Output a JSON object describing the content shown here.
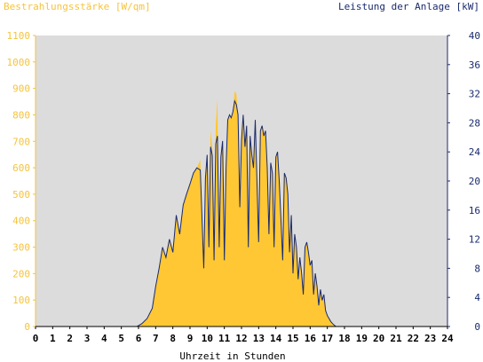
{
  "chart_data": {
    "type": "area",
    "left_axis_title": "Bestrahlungsstärke [W/qm]",
    "right_axis_title": "Leistung der Anlage [kW]",
    "xlabel": "Uhrzeit in Stunden",
    "x_ticks": [
      "0",
      "1",
      "2",
      "3",
      "4",
      "5",
      "6",
      "7",
      "8",
      "9",
      "10",
      "11",
      "12",
      "13",
      "14",
      "15",
      "16",
      "17",
      "18",
      "19",
      "20",
      "21",
      "22",
      "23",
      "24"
    ],
    "left_ticks": [
      "0",
      "100",
      "200",
      "300",
      "400",
      "500",
      "600",
      "700",
      "800",
      "900",
      "1000",
      "1100"
    ],
    "right_ticks": [
      "0",
      "4",
      "8",
      "12",
      "16",
      "20",
      "24",
      "28",
      "32",
      "36",
      "40"
    ],
    "xlim": [
      0,
      24
    ],
    "ylim_left": [
      0,
      1100
    ],
    "ylim_right": [
      0,
      40
    ],
    "colors": {
      "irradiance_fill": "#ffc733",
      "power_line": "#1a2a6c",
      "left_axis": "#f5c33b",
      "right_axis": "#1a2a6c",
      "plot_bg": "#dcdcdc"
    },
    "series": [
      {
        "axis": "left",
        "x": [
          0,
          5.9,
          6.2,
          6.5,
          6.8,
          7.0,
          7.2,
          7.4,
          7.6,
          7.8,
          8.0,
          8.2,
          8.4,
          8.6,
          8.8,
          9.0,
          9.2,
          9.4,
          9.6,
          9.8,
          9.9,
          10.0,
          10.1,
          10.2,
          10.3,
          10.4,
          10.5,
          10.6,
          10.7,
          10.8,
          10.9,
          11.0,
          11.1,
          11.2,
          11.3,
          11.4,
          11.5,
          11.6,
          11.7,
          11.8,
          11.9,
          12.0,
          12.1,
          12.2,
          12.3,
          12.4,
          12.5,
          12.6,
          12.7,
          12.8,
          12.9,
          13.0,
          13.1,
          13.2,
          13.3,
          13.4,
          13.5,
          13.6,
          13.7,
          13.8,
          13.9,
          14.0,
          14.1,
          14.2,
          14.3,
          14.4,
          14.5,
          14.6,
          14.7,
          14.8,
          14.9,
          15.0,
          15.1,
          15.2,
          15.3,
          15.4,
          15.5,
          15.6,
          15.7,
          15.8,
          15.9,
          16.0,
          16.1,
          16.2,
          16.3,
          16.4,
          16.5,
          16.6,
          16.7,
          16.8,
          16.9,
          17.0,
          17.1,
          17.2,
          17.3,
          17.4,
          17.5,
          17.6,
          17.7,
          17.8,
          17.9,
          18.0,
          18.2,
          18.4,
          18.6,
          18.8,
          19.0,
          19.2,
          24
        ],
        "y": [
          0,
          0,
          10,
          30,
          70,
          150,
          220,
          300,
          260,
          330,
          280,
          420,
          350,
          460,
          500,
          540,
          580,
          600,
          630,
          220,
          560,
          650,
          300,
          740,
          680,
          250,
          760,
          860,
          300,
          640,
          700,
          250,
          600,
          780,
          800,
          790,
          810,
          890,
          880,
          800,
          450,
          700,
          800,
          680,
          760,
          300,
          720,
          650,
          600,
          780,
          550,
          320,
          740,
          760,
          720,
          740,
          600,
          350,
          620,
          580,
          300,
          640,
          660,
          550,
          400,
          250,
          580,
          560,
          500,
          280,
          420,
          200,
          350,
          300,
          180,
          260,
          200,
          120,
          300,
          320,
          280,
          230,
          250,
          120,
          200,
          150,
          80,
          140,
          100,
          120,
          60,
          40,
          30,
          20,
          12,
          5,
          0,
          0,
          0,
          0,
          0,
          0,
          0,
          0,
          0,
          0,
          0,
          0,
          0
        ]
      },
      {
        "axis": "right",
        "x": [
          0,
          5.9,
          6.2,
          6.5,
          6.8,
          7.0,
          7.2,
          7.4,
          7.6,
          7.8,
          8.0,
          8.2,
          8.4,
          8.6,
          8.8,
          9.0,
          9.2,
          9.4,
          9.6,
          9.8,
          9.9,
          10.0,
          10.1,
          10.2,
          10.3,
          10.4,
          10.5,
          10.6,
          10.7,
          10.8,
          10.9,
          11.0,
          11.1,
          11.2,
          11.3,
          11.4,
          11.5,
          11.6,
          11.7,
          11.8,
          11.9,
          12.0,
          12.1,
          12.2,
          12.3,
          12.4,
          12.5,
          12.6,
          12.7,
          12.8,
          12.9,
          13.0,
          13.1,
          13.2,
          13.3,
          13.4,
          13.5,
          13.6,
          13.7,
          13.8,
          13.9,
          14.0,
          14.1,
          14.2,
          14.3,
          14.4,
          14.5,
          14.6,
          14.7,
          14.8,
          14.9,
          15.0,
          15.1,
          15.2,
          15.3,
          15.4,
          15.5,
          15.6,
          15.7,
          15.8,
          15.9,
          16.0,
          16.1,
          16.2,
          16.3,
          16.4,
          16.5,
          16.6,
          16.7,
          16.8,
          16.9,
          17.0,
          17.1,
          17.2,
          17.3,
          17.4,
          17.5,
          17.6,
          17.7,
          17.8,
          17.9,
          18.0,
          18.2,
          18.4,
          18.6,
          18.8,
          19.0,
          19.2,
          24
        ],
        "y": [
          0,
          0,
          0.4,
          1.1,
          2.5,
          5.5,
          8.0,
          10.9,
          9.5,
          12.0,
          10.2,
          15.3,
          12.7,
          16.7,
          18.2,
          19.6,
          21.1,
          21.8,
          21.5,
          8.0,
          20.4,
          23.6,
          10.9,
          24.7,
          23.5,
          9.1,
          25.1,
          26.2,
          10.9,
          23.3,
          25.5,
          9.1,
          21.8,
          28.4,
          29.1,
          28.7,
          29.5,
          31.0,
          30.5,
          29.1,
          16.4,
          25.5,
          29.1,
          24.7,
          27.6,
          10.9,
          26.2,
          23.6,
          21.8,
          28.4,
          20.0,
          11.6,
          26.9,
          27.6,
          26.2,
          26.9,
          21.8,
          12.7,
          22.5,
          21.1,
          10.9,
          23.3,
          24.0,
          20.0,
          14.5,
          9.1,
          21.1,
          20.4,
          18.2,
          10.2,
          15.3,
          7.3,
          12.7,
          10.9,
          6.5,
          9.5,
          7.3,
          4.4,
          10.9,
          11.6,
          10.2,
          8.4,
          9.1,
          4.4,
          7.3,
          5.5,
          2.9,
          5.1,
          3.6,
          4.4,
          2.2,
          1.5,
          1.1,
          0.7,
          0.4,
          0.2,
          0,
          0,
          0,
          0,
          0,
          0,
          0,
          0,
          0,
          0,
          0,
          0,
          0
        ]
      }
    ]
  }
}
